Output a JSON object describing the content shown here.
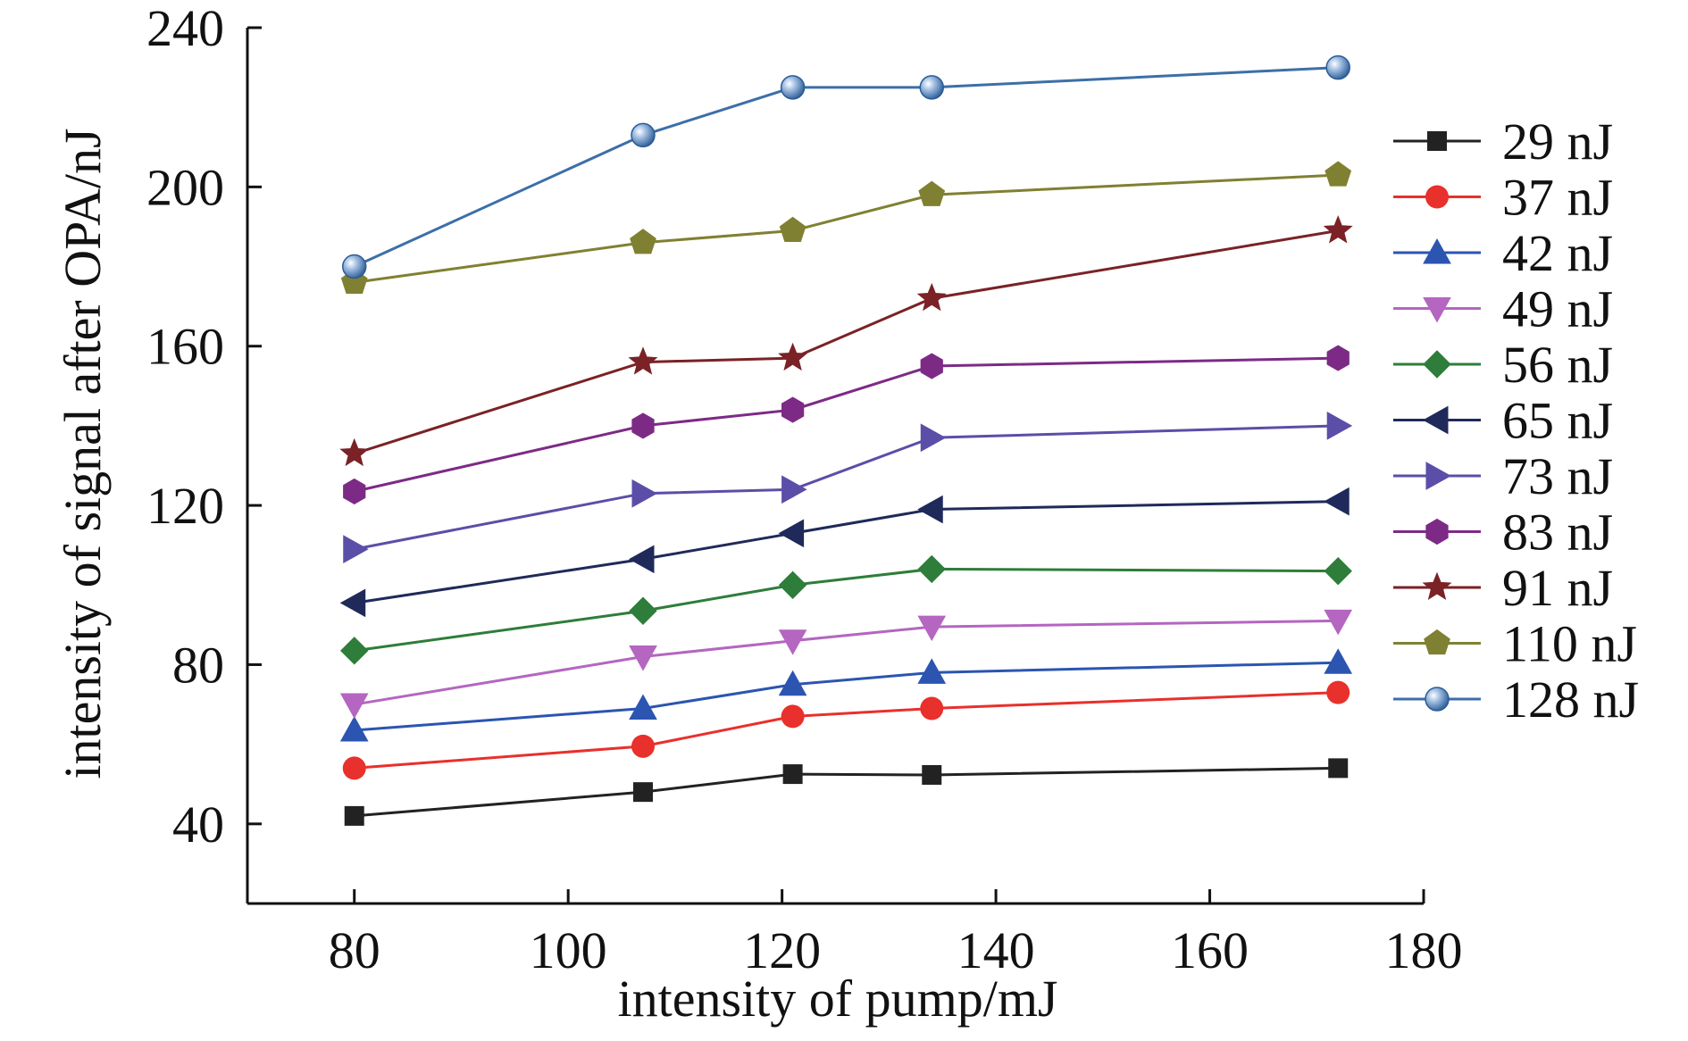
{
  "chart_data": {
    "type": "line",
    "title": "",
    "xlabel": "intensity of pump/mJ",
    "ylabel": "intensity of signal after OPA/nJ",
    "xlim": [
      70,
      180
    ],
    "ylim": [
      20,
      240
    ],
    "xticks": [
      80,
      100,
      120,
      140,
      160,
      180
    ],
    "yticks": [
      40,
      80,
      120,
      160,
      200,
      240
    ],
    "grid": false,
    "legend_position": "right",
    "x": [
      80,
      107,
      121,
      134,
      172
    ],
    "series": [
      {
        "name": "29 nJ",
        "color": "#222222",
        "marker": "square",
        "values": [
          42,
          48,
          52.5,
          52.3,
          54
        ]
      },
      {
        "name": "37 nJ",
        "color": "#e8302c",
        "marker": "circle",
        "values": [
          54,
          59.5,
          67,
          69,
          73
        ]
      },
      {
        "name": "42 nJ",
        "color": "#2b55b0",
        "marker": "triangle-up",
        "values": [
          63.5,
          69,
          75,
          78,
          80.5
        ]
      },
      {
        "name": "49 nJ",
        "color": "#b466c0",
        "marker": "triangle-down",
        "values": [
          70,
          82,
          86,
          89.5,
          91
        ]
      },
      {
        "name": "56 nJ",
        "color": "#2e7d3a",
        "marker": "diamond",
        "values": [
          83.5,
          93.5,
          100,
          104,
          103.5
        ]
      },
      {
        "name": "65 nJ",
        "color": "#1f2a5a",
        "marker": "triangle-left",
        "values": [
          95.5,
          106.5,
          113,
          119,
          121
        ]
      },
      {
        "name": "73 nJ",
        "color": "#5b4ea8",
        "marker": "triangle-right",
        "values": [
          109,
          123,
          124,
          137,
          140
        ]
      },
      {
        "name": "83 nJ",
        "color": "#7d2a86",
        "marker": "hexagon",
        "values": [
          123.5,
          140,
          144,
          155,
          157
        ]
      },
      {
        "name": "91 nJ",
        "color": "#7a2226",
        "marker": "star",
        "values": [
          133,
          156,
          157,
          172,
          189
        ]
      },
      {
        "name": "110 nJ",
        "color": "#808032",
        "marker": "pentagon",
        "values": [
          176,
          186,
          189,
          198,
          203
        ]
      },
      {
        "name": "128 nJ",
        "color": "#3c6fa8",
        "marker": "sphere",
        "values": [
          180,
          213,
          225,
          225,
          230
        ]
      }
    ]
  }
}
